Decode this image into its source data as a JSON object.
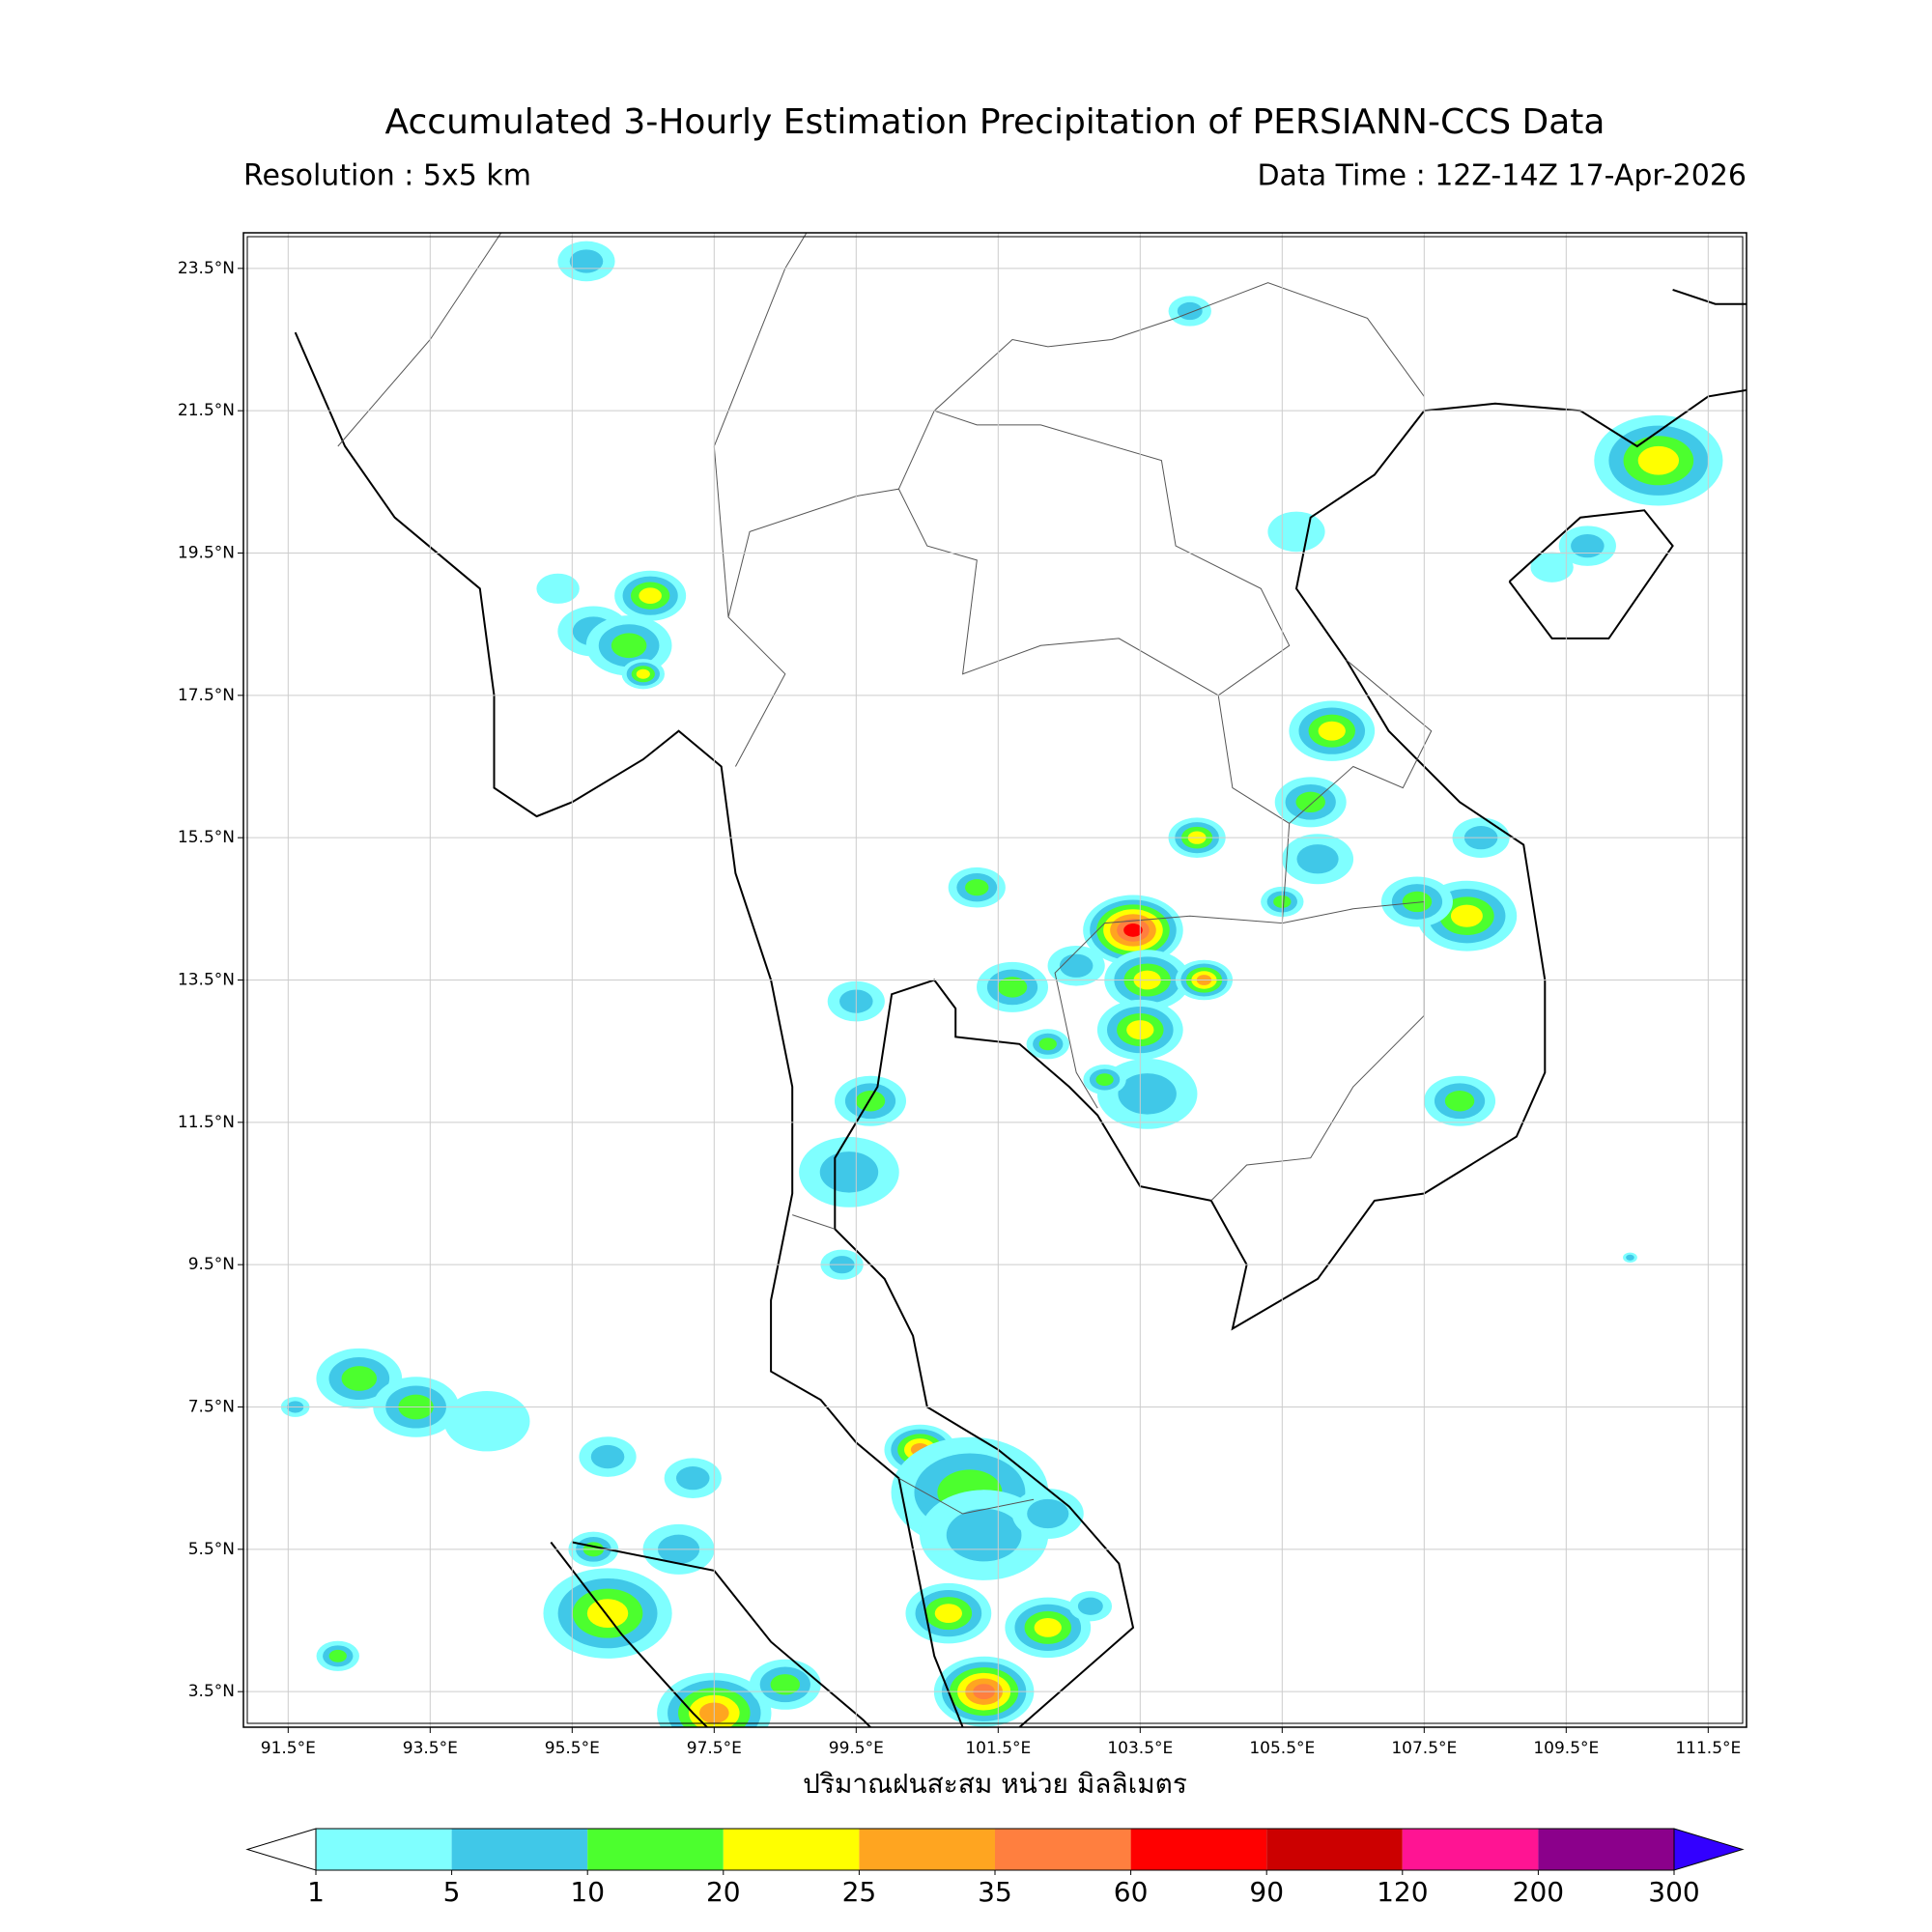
{
  "map": {
    "title": "Accumulated 3-Hourly Estimation Precipitation of PERSIANN-CCS Data",
    "resolution": "Resolution : 5x5 km",
    "data_time": "Data Time : 12Z-14Z 17-Apr-2026",
    "xlim": [
      90.87,
      112.04
    ],
    "ylim": [
      3.0,
      24.0
    ],
    "xticks": [
      {
        "value": 91.5,
        "label": "91.5°E"
      },
      {
        "value": 93.5,
        "label": "93.5°E"
      },
      {
        "value": 95.5,
        "label": "95.5°E"
      },
      {
        "value": 97.5,
        "label": "97.5°E"
      },
      {
        "value": 99.5,
        "label": "99.5°E"
      },
      {
        "value": 101.5,
        "label": "101.5°E"
      },
      {
        "value": 103.5,
        "label": "103.5°E"
      },
      {
        "value": 105.5,
        "label": "105.5°E"
      },
      {
        "value": 107.5,
        "label": "107.5°E"
      },
      {
        "value": 109.5,
        "label": "109.5°E"
      },
      {
        "value": 111.5,
        "label": "111.5°E"
      }
    ],
    "yticks": [
      {
        "value": 3.5,
        "label": "3.5°N"
      },
      {
        "value": 5.5,
        "label": "5.5°N"
      },
      {
        "value": 7.5,
        "label": "7.5°N"
      },
      {
        "value": 9.5,
        "label": "9.5°N"
      },
      {
        "value": 11.5,
        "label": "11.5°N"
      },
      {
        "value": 13.5,
        "label": "13.5°N"
      },
      {
        "value": 15.5,
        "label": "15.5°N"
      },
      {
        "value": 17.5,
        "label": "17.5°N"
      },
      {
        "value": 19.5,
        "label": "19.5°N"
      },
      {
        "value": 21.5,
        "label": "21.5°N"
      },
      {
        "value": 23.5,
        "label": "23.5°N"
      }
    ],
    "grid": true,
    "xlabel": "ปริมาณฝนสะสม หน่วย มิลลิเมตร",
    "colorbar": {
      "levels": [
        1,
        5,
        10,
        20,
        25,
        35,
        60,
        90,
        120,
        200,
        300
      ],
      "colors": [
        "#7fffff",
        "#40c8e8",
        "#4cff2e",
        "#ffff00",
        "#ffa520",
        "#ff7f3f",
        "#ff0000",
        "#cc0000",
        "#ff1493",
        "#8b008b"
      ],
      "under_color": "#ffffff",
      "over_color": "#3300ff"
    }
  }
}
